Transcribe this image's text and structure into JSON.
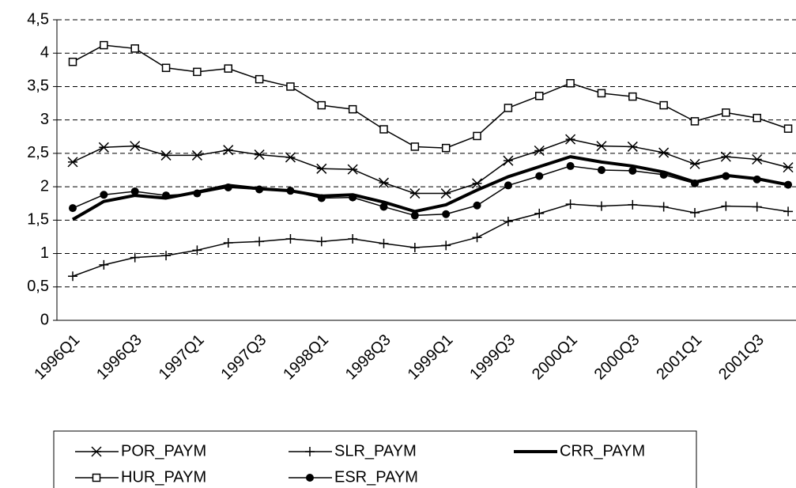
{
  "chart_data": {
    "type": "line",
    "categories": [
      "1996Q1",
      null,
      "1996Q3",
      null,
      "1997Q1",
      null,
      "1997Q3",
      null,
      "1998Q1",
      null,
      "1998Q3",
      null,
      "1999Q1",
      null,
      "1999Q3",
      null,
      "2000Q1",
      null,
      "2000Q3",
      null,
      "2001Q1",
      null,
      "2001Q3",
      null
    ],
    "series": [
      {
        "name": "POR_PAYM",
        "color": "#000000",
        "marker": "star",
        "values": [
          2.37,
          2.59,
          2.61,
          2.47,
          2.47,
          2.55,
          2.48,
          2.44,
          2.27,
          2.26,
          2.06,
          1.9,
          1.9,
          2.05,
          2.39,
          2.54,
          2.71,
          2.61,
          2.6,
          2.51,
          2.34,
          2.45,
          2.41,
          2.29
        ]
      },
      {
        "name": "SLR_PAYM",
        "color": "#000000",
        "marker": "plus",
        "values": [
          0.66,
          0.83,
          0.94,
          0.97,
          1.05,
          1.16,
          1.18,
          1.22,
          1.18,
          1.22,
          1.15,
          1.09,
          1.12,
          1.24,
          1.48,
          1.6,
          1.74,
          1.71,
          1.73,
          1.7,
          1.61,
          1.71,
          1.7,
          1.63
        ]
      },
      {
        "name": "CRR_PAYM",
        "color": "#000000",
        "marker": "none",
        "line_width": 4,
        "values": [
          1.51,
          1.78,
          1.87,
          1.83,
          1.92,
          2.02,
          1.97,
          1.94,
          1.86,
          1.88,
          1.77,
          1.63,
          1.73,
          1.95,
          2.15,
          2.3,
          2.45,
          2.37,
          2.31,
          2.22,
          2.07,
          2.17,
          2.12,
          2.03
        ]
      },
      {
        "name": "HUR_PAYM",
        "color": "#000000",
        "marker": "square",
        "values": [
          3.87,
          4.12,
          4.07,
          3.78,
          3.72,
          3.77,
          3.61,
          3.5,
          3.22,
          3.16,
          2.86,
          2.6,
          2.58,
          2.76,
          3.18,
          3.36,
          3.55,
          3.4,
          3.35,
          3.22,
          2.98,
          3.11,
          3.03,
          2.87
        ]
      },
      {
        "name": "ESR_PAYM",
        "color": "#000000",
        "marker": "circle",
        "values": [
          1.68,
          1.88,
          1.93,
          1.87,
          1.9,
          1.99,
          1.96,
          1.94,
          1.83,
          1.84,
          1.7,
          1.57,
          1.59,
          1.72,
          2.02,
          2.16,
          2.31,
          2.25,
          2.24,
          2.18,
          2.05,
          2.16,
          2.11,
          2.03
        ]
      }
    ],
    "ylim": [
      0,
      4.5
    ],
    "yticks": [
      0,
      {
        "value": 0.5,
        "label": "0,5"
      },
      1,
      {
        "value": 1.5,
        "label": "1,5"
      },
      2,
      {
        "value": 2.5,
        "label": "2,5"
      },
      3,
      {
        "value": 3.5,
        "label": "3,5"
      },
      4,
      {
        "value": 4.5,
        "label": "4,5"
      }
    ],
    "grid": true
  }
}
